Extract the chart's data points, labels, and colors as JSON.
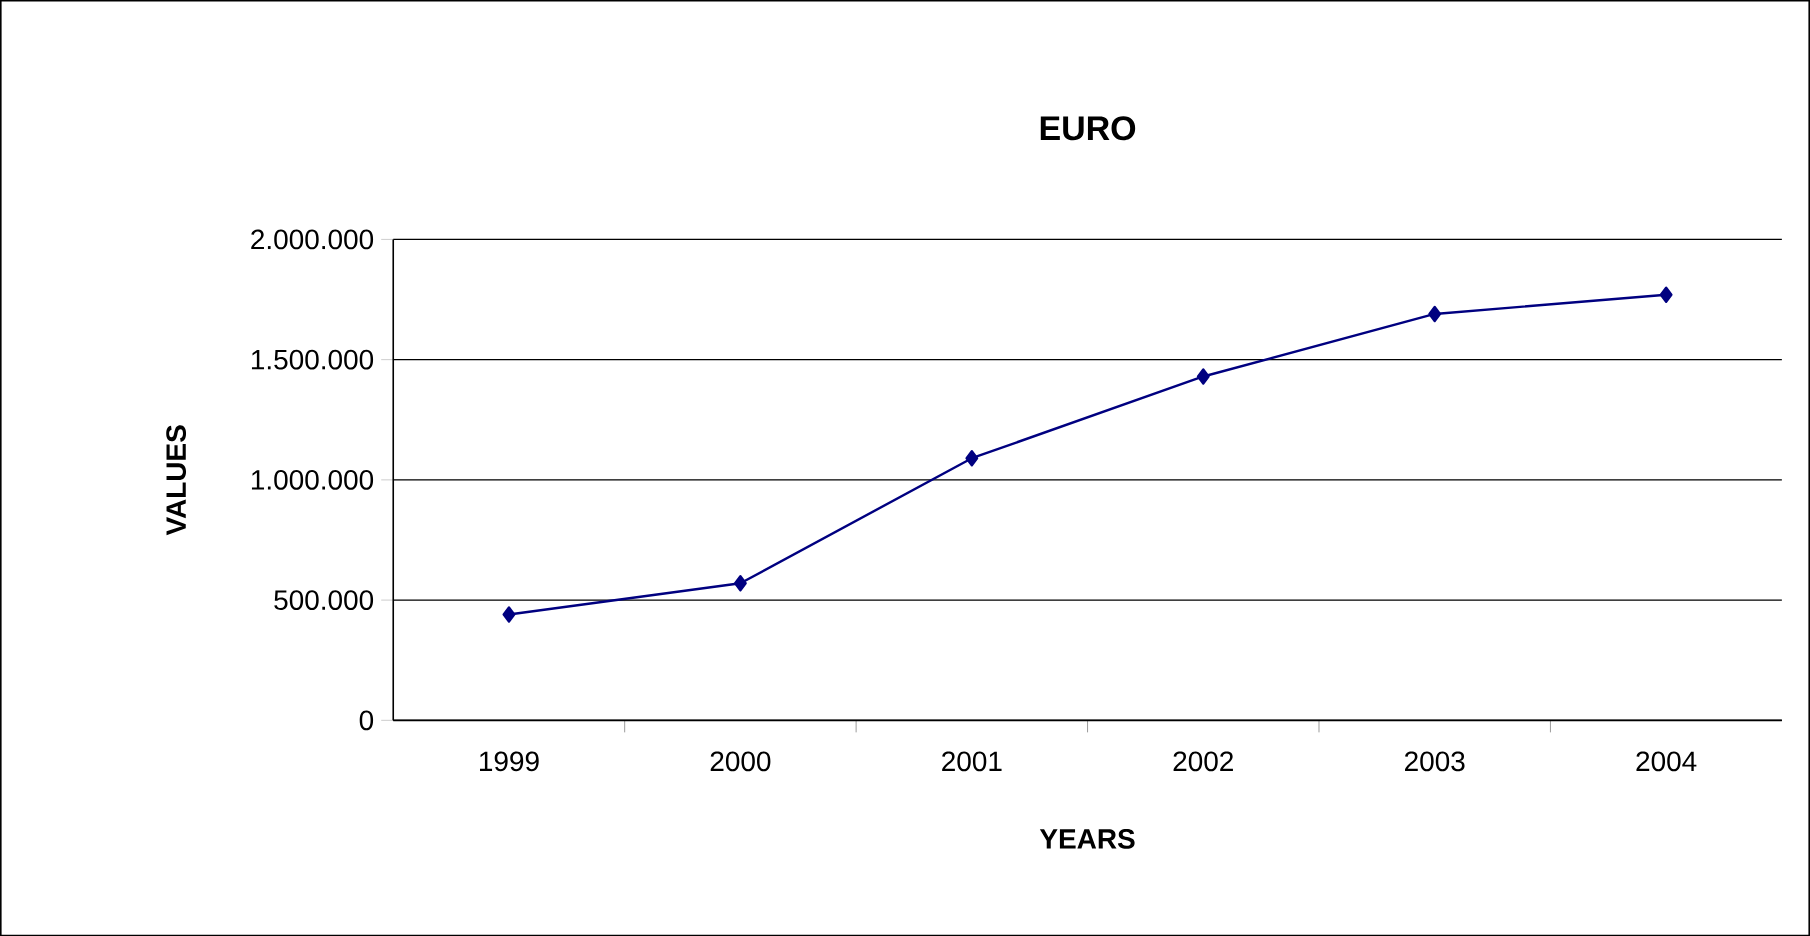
{
  "chart_data": {
    "type": "line",
    "title": "EURO",
    "xlabel": "YEARS",
    "ylabel": "VALUES",
    "categories": [
      "1999",
      "2000",
      "2001",
      "2002",
      "2003",
      "2004"
    ],
    "series": [
      {
        "color": "#000080",
        "values": [
          440000,
          570000,
          1090000,
          1430000,
          1690000,
          1770000
        ]
      }
    ],
    "ylim": [
      0,
      2000000
    ],
    "yticks": [
      0,
      {
        "value": 500000,
        "label": "500.000"
      },
      {
        "value": 1000000,
        "label": "1.000.000"
      },
      {
        "value": 1500000,
        "label": "1.500.000"
      },
      {
        "value": 2000000,
        "label": "2.000.000"
      }
    ],
    "grid": "y",
    "marker": "diamond",
    "line_style": "solid"
  }
}
